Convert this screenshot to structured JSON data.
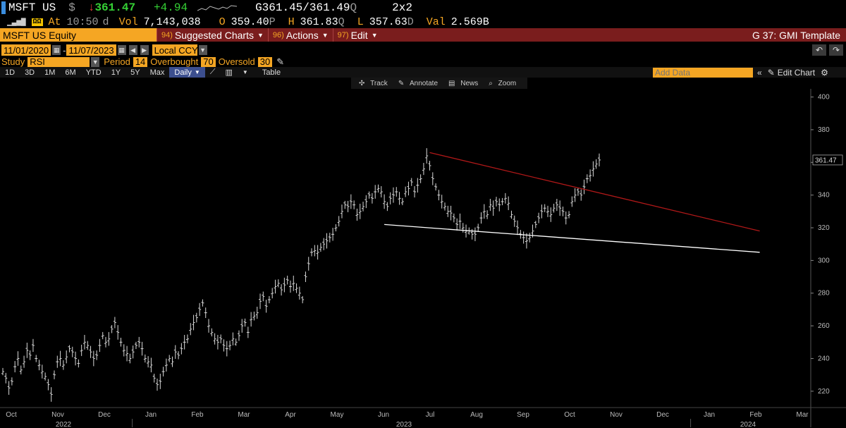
{
  "quote": {
    "ticker": "MSFT US",
    "currency": "$",
    "arrow": "↓",
    "last": "361.47",
    "change": "+4.94",
    "bid": "G361.45",
    "ask": "/361.49",
    "ask_suffix": "Q",
    "size": "2x2",
    "at_label": "At",
    "time": "10:50",
    "time_suffix": "d",
    "vol_label": "Vol",
    "volume": "7,143,038",
    "open_label": "O",
    "open": "359.40",
    "open_suffix": "P",
    "high_label": "H",
    "high": "361.83",
    "high_suffix": "Q",
    "low_label": "L",
    "low": "357.63",
    "low_suffix": "D",
    "val_label": "Val",
    "value": "2.569B"
  },
  "menubar": {
    "security": "MSFT US Equity",
    "suggested_num": "94)",
    "suggested": "Suggested Charts",
    "actions_num": "96)",
    "actions": "Actions",
    "edit_num": "97)",
    "edit": "Edit",
    "template": "G 37: GMI Template"
  },
  "dates": {
    "start": "11/01/2020",
    "end": "11/07/2023",
    "currency": "Local CCY"
  },
  "study": {
    "label": "Study",
    "name": "RSI",
    "period_label": "Period",
    "period": "14",
    "overbought_label": "Overbought",
    "overbought": "70",
    "oversold_label": "Oversold",
    "oversold": "30"
  },
  "toolbar": {
    "ranges": [
      "1D",
      "3D",
      "1M",
      "6M",
      "YTD",
      "1Y",
      "5Y",
      "Max"
    ],
    "frequency": "Daily",
    "table": "Table",
    "add_data_placeholder": "Add Data",
    "edit_chart": "Edit Chart"
  },
  "chart_tools": [
    "Track",
    "Annotate",
    "News",
    "Zoom"
  ],
  "colors": {
    "accent_orange": "#f5a623",
    "menubar_red": "#7a1d1d",
    "price_green": "#35d135",
    "trendline_red": "#b01818",
    "trendline_white": "#ffffff"
  },
  "chart_data": {
    "type": "ohlc",
    "title": "",
    "y_ticks": [
      220,
      240,
      260,
      280,
      300,
      320,
      340,
      360,
      380,
      400
    ],
    "ylim": [
      210,
      405
    ],
    "last_price_label": "361.47",
    "x_ticks": [
      "Oct",
      "Nov",
      "Dec",
      "Jan",
      "Feb",
      "Mar",
      "Apr",
      "May",
      "Jun",
      "Jul",
      "Aug",
      "Sep",
      "Oct",
      "Nov",
      "Dec",
      "Jan",
      "Feb",
      "Mar"
    ],
    "years": [
      "2022",
      "2023",
      "2024"
    ],
    "series": [
      {
        "values": [
          232,
          228,
          222,
          226,
          235,
          240,
          233,
          238,
          245,
          242,
          248,
          240,
          236,
          232,
          229,
          224,
          218,
          230,
          238,
          240,
          236,
          241,
          246,
          244,
          240,
          237,
          245,
          250,
          248,
          244,
          240,
          242,
          248,
          254,
          250,
          252,
          258,
          262,
          256,
          250,
          245,
          243,
          240,
          244,
          248,
          250,
          246,
          240,
          238,
          236,
          228,
          224,
          226,
          232,
          236,
          240,
          238,
          244,
          242,
          246,
          250,
          252,
          258,
          262,
          265,
          270,
          274,
          268,
          260,
          256,
          252,
          250,
          252,
          248,
          246,
          248,
          252,
          250,
          254,
          260,
          262,
          256,
          264,
          266,
          268,
          275,
          278,
          272,
          276,
          280,
          284,
          286,
          282,
          285,
          288,
          284,
          286,
          283,
          280,
          276,
          290,
          298,
          305,
          306,
          305,
          308,
          310,
          312,
          314,
          316,
          320,
          324,
          330,
          334,
          333,
          336,
          334,
          328,
          330,
          333,
          336,
          340,
          338,
          342,
          344,
          342,
          336,
          333,
          338,
          340,
          342,
          338,
          336,
          342,
          344,
          348,
          342,
          346,
          350,
          356,
          364,
          358,
          350,
          345,
          340,
          336,
          333,
          330,
          329,
          326,
          322,
          324,
          320,
          318,
          318,
          316,
          316,
          320,
          326,
          330,
          328,
          334,
          332,
          336,
          334,
          336,
          338,
          335,
          328,
          324,
          320,
          316,
          314,
          312,
          314,
          318,
          322,
          326,
          330,
          332,
          330,
          328,
          332,
          334,
          332,
          330,
          326,
          328,
          336,
          340,
          342,
          340,
          345,
          350,
          352,
          356,
          359,
          361.47
        ]
      }
    ],
    "trendlines": [
      {
        "name": "",
        "color": "red",
        "from_index": 141,
        "to_index": 250,
        "from_value": 366,
        "to_value": 318
      },
      {
        "name": "",
        "color": "white",
        "from_index": 126,
        "to_index": 250,
        "from_value": 322,
        "to_value": 305
      }
    ]
  }
}
